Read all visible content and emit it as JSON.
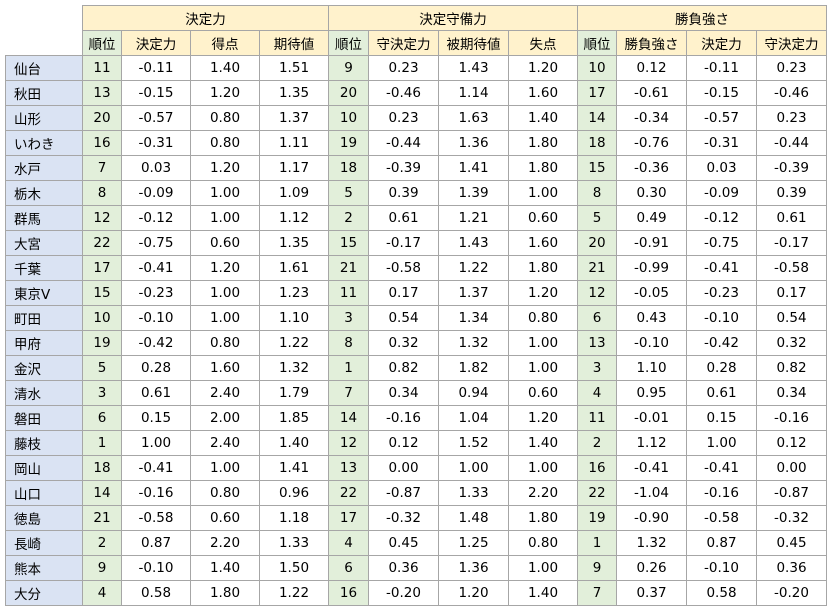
{
  "table": {
    "groups": [
      "決定力",
      "決定守備力",
      "勝負強さ"
    ],
    "columns": [
      "順位",
      "決定力",
      "得点",
      "期待値",
      "順位",
      "守決定力",
      "被期待値",
      "失点",
      "順位",
      "勝負強さ",
      "決定力",
      "守決定力"
    ],
    "rows": [
      [
        "仙台",
        "11",
        "-0.11",
        "1.40",
        "1.51",
        "9",
        "0.23",
        "1.43",
        "1.20",
        "10",
        "0.12",
        "-0.11",
        "0.23"
      ],
      [
        "秋田",
        "13",
        "-0.15",
        "1.20",
        "1.35",
        "20",
        "-0.46",
        "1.14",
        "1.60",
        "17",
        "-0.61",
        "-0.15",
        "-0.46"
      ],
      [
        "山形",
        "20",
        "-0.57",
        "0.80",
        "1.37",
        "10",
        "0.23",
        "1.63",
        "1.40",
        "14",
        "-0.34",
        "-0.57",
        "0.23"
      ],
      [
        "いわき",
        "16",
        "-0.31",
        "0.80",
        "1.11",
        "19",
        "-0.44",
        "1.36",
        "1.80",
        "18",
        "-0.76",
        "-0.31",
        "-0.44"
      ],
      [
        "水戸",
        "7",
        "0.03",
        "1.20",
        "1.17",
        "18",
        "-0.39",
        "1.41",
        "1.80",
        "15",
        "-0.36",
        "0.03",
        "-0.39"
      ],
      [
        "栃木",
        "8",
        "-0.09",
        "1.00",
        "1.09",
        "5",
        "0.39",
        "1.39",
        "1.00",
        "8",
        "0.30",
        "-0.09",
        "0.39"
      ],
      [
        "群馬",
        "12",
        "-0.12",
        "1.00",
        "1.12",
        "2",
        "0.61",
        "1.21",
        "0.60",
        "5",
        "0.49",
        "-0.12",
        "0.61"
      ],
      [
        "大宮",
        "22",
        "-0.75",
        "0.60",
        "1.35",
        "15",
        "-0.17",
        "1.43",
        "1.60",
        "20",
        "-0.91",
        "-0.75",
        "-0.17"
      ],
      [
        "千葉",
        "17",
        "-0.41",
        "1.20",
        "1.61",
        "21",
        "-0.58",
        "1.22",
        "1.80",
        "21",
        "-0.99",
        "-0.41",
        "-0.58"
      ],
      [
        "東京V",
        "15",
        "-0.23",
        "1.00",
        "1.23",
        "11",
        "0.17",
        "1.37",
        "1.20",
        "12",
        "-0.05",
        "-0.23",
        "0.17"
      ],
      [
        "町田",
        "10",
        "-0.10",
        "1.00",
        "1.10",
        "3",
        "0.54",
        "1.34",
        "0.80",
        "6",
        "0.43",
        "-0.10",
        "0.54"
      ],
      [
        "甲府",
        "19",
        "-0.42",
        "0.80",
        "1.22",
        "8",
        "0.32",
        "1.32",
        "1.00",
        "13",
        "-0.10",
        "-0.42",
        "0.32"
      ],
      [
        "金沢",
        "5",
        "0.28",
        "1.60",
        "1.32",
        "1",
        "0.82",
        "1.82",
        "1.00",
        "3",
        "1.10",
        "0.28",
        "0.82"
      ],
      [
        "清水",
        "3",
        "0.61",
        "2.40",
        "1.79",
        "7",
        "0.34",
        "0.94",
        "0.60",
        "4",
        "0.95",
        "0.61",
        "0.34"
      ],
      [
        "磐田",
        "6",
        "0.15",
        "2.00",
        "1.85",
        "14",
        "-0.16",
        "1.04",
        "1.20",
        "11",
        "-0.01",
        "0.15",
        "-0.16"
      ],
      [
        "藤枝",
        "1",
        "1.00",
        "2.40",
        "1.40",
        "12",
        "0.12",
        "1.52",
        "1.40",
        "2",
        "1.12",
        "1.00",
        "0.12"
      ],
      [
        "岡山",
        "18",
        "-0.41",
        "1.00",
        "1.41",
        "13",
        "0.00",
        "1.00",
        "1.00",
        "16",
        "-0.41",
        "-0.41",
        "0.00"
      ],
      [
        "山口",
        "14",
        "-0.16",
        "0.80",
        "0.96",
        "22",
        "-0.87",
        "1.33",
        "2.20",
        "22",
        "-1.04",
        "-0.16",
        "-0.87"
      ],
      [
        "徳島",
        "21",
        "-0.58",
        "0.60",
        "1.18",
        "17",
        "-0.32",
        "1.48",
        "1.80",
        "19",
        "-0.90",
        "-0.58",
        "-0.32"
      ],
      [
        "長崎",
        "2",
        "0.87",
        "2.20",
        "1.33",
        "4",
        "0.45",
        "1.25",
        "0.80",
        "1",
        "1.32",
        "0.87",
        "0.45"
      ],
      [
        "熊本",
        "9",
        "-0.10",
        "1.40",
        "1.50",
        "6",
        "0.36",
        "1.36",
        "1.00",
        "9",
        "0.26",
        "-0.10",
        "0.36"
      ],
      [
        "大分",
        "4",
        "0.58",
        "1.80",
        "1.22",
        "16",
        "-0.20",
        "1.20",
        "1.40",
        "7",
        "0.37",
        "0.58",
        "-0.20"
      ]
    ]
  }
}
